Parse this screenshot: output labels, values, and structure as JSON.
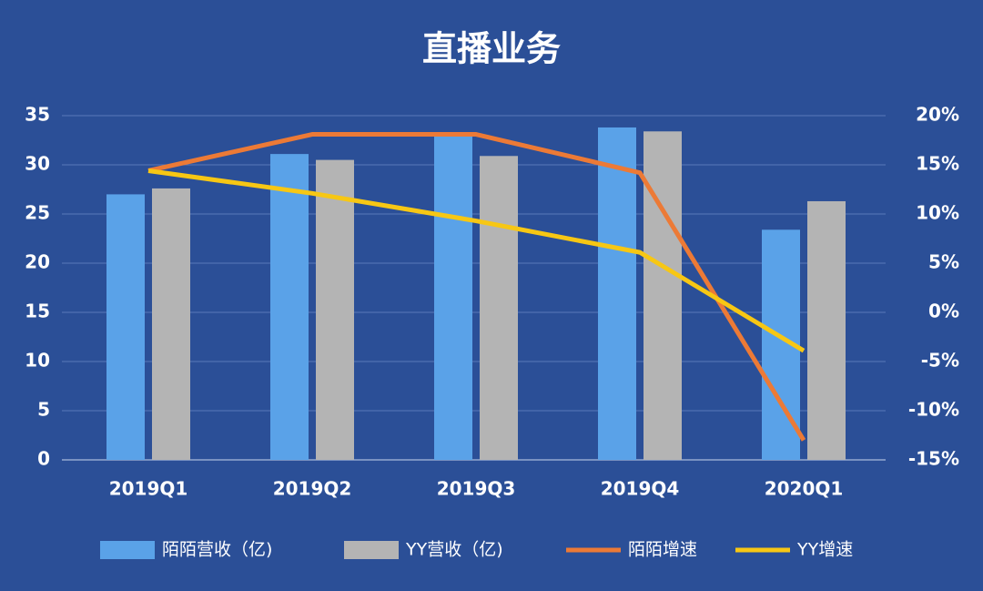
{
  "chart_data": {
    "type": "bar",
    "title": "直播业务",
    "categories": [
      "2019Q1",
      "2019Q2",
      "2019Q3",
      "2019Q4",
      "2020Q1"
    ],
    "series": [
      {
        "name": "陌陌营收（亿)",
        "type": "bar",
        "color": "#5aa2e8",
        "values": [
          27.0,
          31.1,
          32.9,
          33.8,
          23.4
        ]
      },
      {
        "name": "YY营收（亿)",
        "type": "bar",
        "color": "#b4b4b4",
        "values": [
          27.6,
          30.5,
          30.9,
          33.4,
          26.3
        ]
      },
      {
        "name": "陌陌增速",
        "type": "line",
        "axis": "y2",
        "color": "#ec7a36",
        "values": [
          14.4,
          18.1,
          18.1,
          14.2,
          -13.0
        ]
      },
      {
        "name": "YY增速",
        "type": "line",
        "axis": "y2",
        "color": "#f7c714",
        "values": [
          14.4,
          12.1,
          9.3,
          6.1,
          -3.9
        ]
      }
    ],
    "ylim": [
      0,
      35
    ],
    "yticks": [
      0,
      5,
      10,
      15,
      20,
      25,
      30,
      35
    ],
    "y2lim": [
      -15,
      20
    ],
    "y2ticks": [
      {
        "value": -15,
        "label": "-15%"
      },
      {
        "value": -10,
        "label": "-10%"
      },
      {
        "value": -5,
        "label": "-5%"
      },
      {
        "value": 0,
        "label": "0%"
      },
      {
        "value": 5,
        "label": "5%"
      },
      {
        "value": 10,
        "label": "10%"
      },
      {
        "value": 15,
        "label": "15%"
      },
      {
        "value": 20,
        "label": "20%"
      }
    ],
    "grid": true,
    "legend": "bottom"
  }
}
